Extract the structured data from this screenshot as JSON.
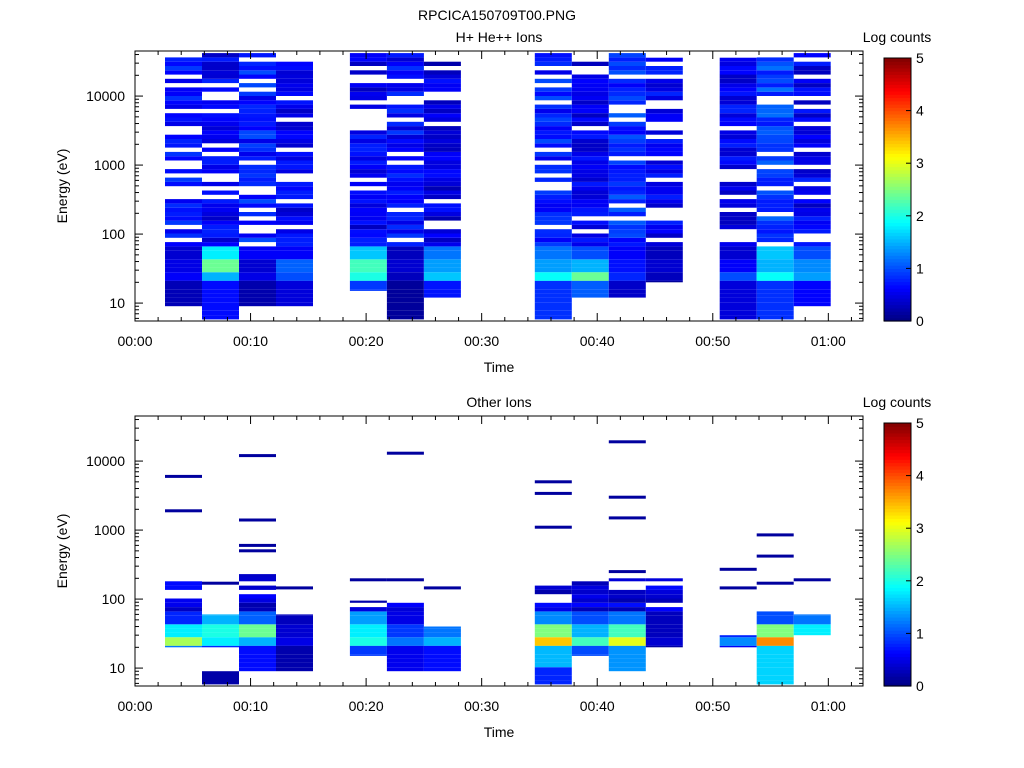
{
  "figure": {
    "title": "RPCICA150709T00.PNG"
  },
  "chart_data": [
    {
      "type": "heatmap",
      "title": "H+ He++ Ions",
      "xlabel": "Time",
      "ylabel": "Energy (eV)",
      "x_tick_labels": [
        "00:00",
        "00:10",
        "00:20",
        "00:30",
        "00:40",
        "00:50",
        "01:00"
      ],
      "x_ticks_min": [
        0,
        10,
        20,
        30,
        40,
        50,
        60
      ],
      "xlim_min": [
        0,
        63
      ],
      "y_scale": "log",
      "y_tick_labels": [
        "10",
        "100",
        "1000",
        "10000"
      ],
      "y_ticks": [
        10,
        100,
        1000,
        10000
      ],
      "ylim": [
        5.5,
        45000
      ],
      "colorbar": {
        "label": "Log counts",
        "tick_labels": [
          "0",
          "1",
          "2",
          "3",
          "4",
          "5"
        ],
        "range": [
          0,
          5
        ]
      },
      "sweeps_min": [
        {
          "start": 2.6,
          "end": 5.8,
          "emin": 9,
          "emax": 42000,
          "low": [
            0.6,
            0.5,
            0.4
          ],
          "high": 0.5
        },
        {
          "start": 5.8,
          "end": 9.0,
          "emin": 5.8,
          "emax": 42000,
          "low": [
            1.5,
            2.4,
            1.8
          ],
          "high": 0.3
        },
        {
          "start": 9.0,
          "end": 12.2,
          "emin": 9,
          "emax": 42000,
          "low": [
            0.5,
            0.4,
            0.6
          ],
          "high": 0.5
        },
        {
          "start": 12.2,
          "end": 15.4,
          "emin": 9,
          "emax": 42000,
          "low": [
            1.0,
            1.1,
            0.6
          ],
          "high": 0.3
        },
        {
          "start": 18.6,
          "end": 21.8,
          "emin": 15,
          "emax": 42000,
          "low": [
            2.0,
            2.2,
            1.6
          ],
          "high": 0.3
        },
        {
          "start": 21.8,
          "end": 25.0,
          "emin": 5.8,
          "emax": 42000,
          "low": [
            0.3,
            0.4,
            0.3
          ],
          "high": 0.4
        },
        {
          "start": 25.0,
          "end": 28.2,
          "emin": 12,
          "emax": 36000,
          "low": [
            1.6,
            1.4,
            1.2
          ],
          "high": 0.2
        },
        {
          "start": 34.6,
          "end": 37.8,
          "emin": 5.8,
          "emax": 42000,
          "low": [
            1.9,
            1.4,
            1.2
          ],
          "high": 0.5
        },
        {
          "start": 37.8,
          "end": 41.0,
          "emin": 12,
          "emax": 42000,
          "low": [
            2.4,
            1.5,
            1.0
          ],
          "high": 0.3
        },
        {
          "start": 41.0,
          "end": 44.2,
          "emin": 12,
          "emax": 42000,
          "low": [
            0.8,
            0.7,
            0.6
          ],
          "high": 0.6
        },
        {
          "start": 44.2,
          "end": 47.4,
          "emin": 20,
          "emax": 36000,
          "low": [
            0.3,
            0.4,
            0.3
          ],
          "high": 0.3
        },
        {
          "start": 50.6,
          "end": 53.8,
          "emin": 5.8,
          "emax": 36000,
          "low": [
            1.0,
            0.6,
            0.4
          ],
          "high": 0.3
        },
        {
          "start": 53.8,
          "end": 57.0,
          "emin": 5.8,
          "emax": 42000,
          "low": [
            1.9,
            1.5,
            1.6
          ],
          "high": 0.7
        },
        {
          "start": 57.0,
          "end": 60.2,
          "emin": 9,
          "emax": 42000,
          "low": [
            1.4,
            1.3,
            1.0
          ],
          "high": 0.3
        }
      ]
    },
    {
      "type": "heatmap",
      "title": "Other Ions",
      "xlabel": "Time",
      "ylabel": "Energy (eV)",
      "x_tick_labels": [
        "00:00",
        "00:10",
        "00:20",
        "00:30",
        "00:40",
        "00:50",
        "01:00"
      ],
      "x_ticks_min": [
        0,
        10,
        20,
        30,
        40,
        50,
        60
      ],
      "xlim_min": [
        0,
        63
      ],
      "y_scale": "log",
      "y_tick_labels": [
        "10",
        "100",
        "1000",
        "10000"
      ],
      "y_ticks": [
        10,
        100,
        1000,
        10000
      ],
      "ylim": [
        5.5,
        45000
      ],
      "colorbar": {
        "label": "Log counts",
        "tick_labels": [
          "0",
          "1",
          "2",
          "3",
          "4",
          "5"
        ],
        "range": [
          0,
          5
        ]
      },
      "sweeps_min": [
        {
          "start": 2.6,
          "end": 5.8,
          "emin": 20,
          "emax": 200,
          "low": [
            2.7,
            1.8,
            0.8
          ],
          "high": 0.2,
          "lines": [
            6000,
            1900
          ]
        },
        {
          "start": 5.8,
          "end": 9.0,
          "emin": 20,
          "emax": 60,
          "low": [
            1.8,
            2.0,
            1.5
          ],
          "high": 0.3,
          "lines": [
            170
          ],
          "extra": [
            [
              5.8,
              9
            ]
          ]
        },
        {
          "start": 9.0,
          "end": 12.2,
          "emin": 9,
          "emax": 230,
          "low": [
            1.5,
            2.4,
            1.1
          ],
          "high": 0.2,
          "lines": [
            12000,
            1400,
            600,
            500
          ]
        },
        {
          "start": 12.2,
          "end": 15.4,
          "emin": 9,
          "emax": 60,
          "low": [
            0.5,
            0.4,
            0.3
          ],
          "high": 0.2,
          "lines": [
            145
          ]
        },
        {
          "start": 18.6,
          "end": 21.8,
          "emin": 15,
          "emax": 95,
          "low": [
            2.0,
            1.8,
            1.4
          ],
          "high": 0.2,
          "lines": [
            190
          ]
        },
        {
          "start": 21.8,
          "end": 25.0,
          "emin": 9,
          "emax": 95,
          "low": [
            1.2,
            0.9,
            0.5
          ],
          "high": 0.2,
          "lines": [
            13000,
            190
          ]
        },
        {
          "start": 25.0,
          "end": 28.2,
          "emin": 9,
          "emax": 40,
          "low": [
            1.5,
            1.2,
            0.9
          ],
          "high": 0.2,
          "lines": [
            145
          ]
        },
        {
          "start": 34.6,
          "end": 37.8,
          "emin": 5.8,
          "emax": 200,
          "low": [
            3.4,
            2.5,
            1.3
          ],
          "high": 0.2,
          "lines": [
            5000,
            3400,
            1100
          ],
          "bright_bottom": 0.8
        },
        {
          "start": 37.8,
          "end": 41.0,
          "emin": 15,
          "emax": 200,
          "low": [
            2.2,
            1.5,
            1.0
          ],
          "high": 0.2,
          "lines": []
        },
        {
          "start": 41.0,
          "end": 44.2,
          "emin": 9,
          "emax": 200,
          "low": [
            3.0,
            2.2,
            1.2
          ],
          "high": 0.2,
          "lines": [
            19000,
            3000,
            1500,
            250
          ]
        },
        {
          "start": 44.2,
          "end": 47.4,
          "emin": 20,
          "emax": 200,
          "low": [
            0.4,
            0.3,
            0.3
          ],
          "high": 0.2,
          "lines": []
        },
        {
          "start": 50.6,
          "end": 53.8,
          "emin": 20,
          "emax": 30,
          "low": [
            1.3,
            0.8,
            0.5
          ],
          "high": 0.2,
          "lines": [
            270,
            145
          ]
        },
        {
          "start": 53.8,
          "end": 57.0,
          "emin": 5.8,
          "emax": 70,
          "low": [
            3.7,
            2.5,
            1.0
          ],
          "high": 0.3,
          "lines": [
            850,
            420,
            170
          ]
        },
        {
          "start": 57.0,
          "end": 60.2,
          "emin": 30,
          "emax": 60,
          "low": [
            1.6,
            1.8,
            1.2
          ],
          "high": 0.3,
          "lines": [
            190
          ]
        }
      ]
    }
  ]
}
